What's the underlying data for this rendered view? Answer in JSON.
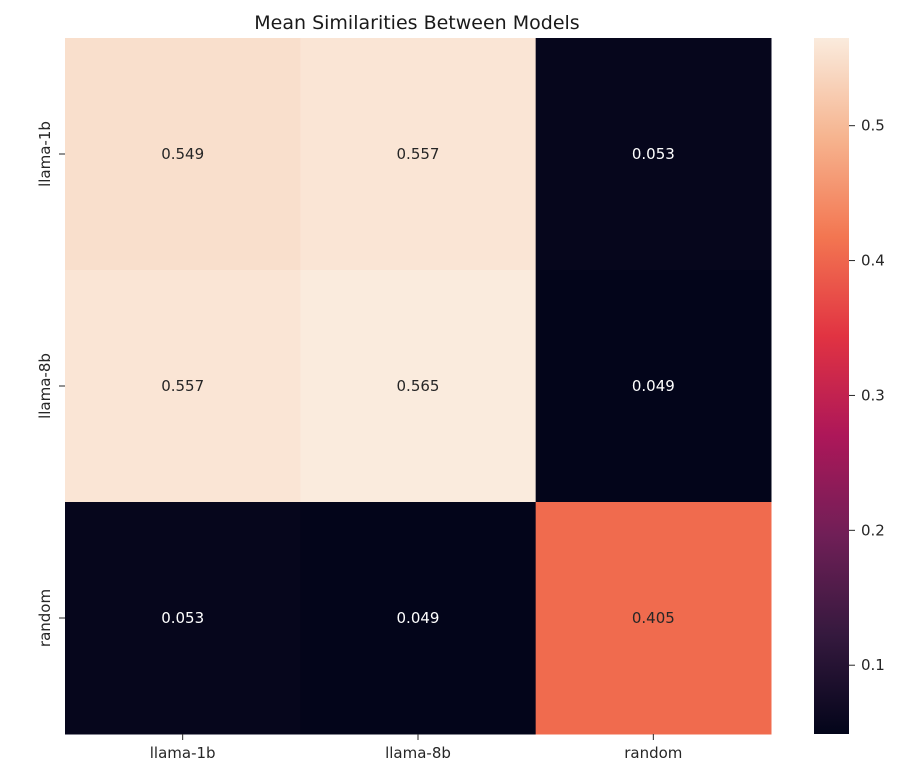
{
  "chart_data": {
    "type": "heatmap",
    "title": "Mean Similarities Between Models",
    "xlabel": "",
    "ylabel": "",
    "x_categories": [
      "llama-1b",
      "llama-8b",
      "random"
    ],
    "y_categories": [
      "llama-1b",
      "llama-8b",
      "random"
    ],
    "values": [
      [
        0.549,
        0.557,
        0.053
      ],
      [
        0.557,
        0.565,
        0.049
      ],
      [
        0.053,
        0.049,
        0.405
      ]
    ],
    "value_labels": [
      [
        "0.549",
        "0.557",
        "0.053"
      ],
      [
        "0.557",
        "0.565",
        "0.049"
      ],
      [
        "0.053",
        "0.049",
        "0.405"
      ]
    ],
    "colorbar": {
      "range": [
        0.049,
        0.565
      ],
      "ticks": [
        0.1,
        0.2,
        0.3,
        0.4,
        0.5
      ],
      "tick_labels": [
        "0.1",
        "0.2",
        "0.3",
        "0.4",
        "0.5"
      ],
      "colormap": "rocket",
      "colormap_stops": [
        "#03051a",
        "#35193e",
        "#701f57",
        "#ad1759",
        "#e13342",
        "#f37651",
        "#f6b48f",
        "#faebdd"
      ]
    }
  }
}
